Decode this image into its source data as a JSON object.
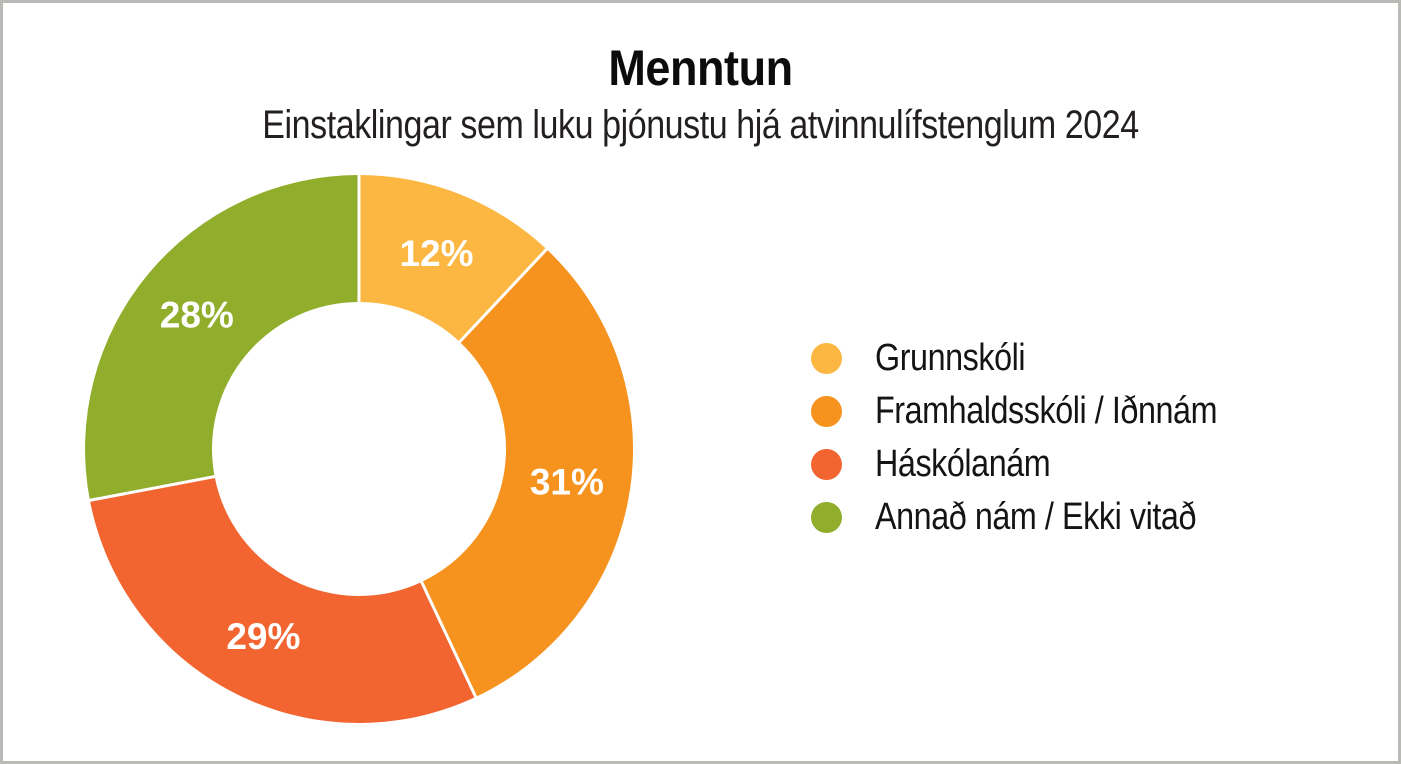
{
  "frame": {
    "background": "#ffffff",
    "border_color": "#b9b9b5"
  },
  "header": {
    "title": "Menntun",
    "subtitle": "Einstaklingar sem luku þjónustu hjá atvinnulífstenglum 2024"
  },
  "chart_data": {
    "type": "pie",
    "variant": "donut",
    "title": "Menntun",
    "subtitle": "Einstaklingar sem luku þjónustu hjá atvinnulífstenglum 2024",
    "unit": "%",
    "start_angle_deg": 0,
    "direction": "clockwise",
    "donut_hole_ratio": 0.536,
    "legend_position": "right",
    "data_label_color": "#ffffff",
    "segments": [
      {
        "label": "Grunnskóli",
        "value": 12,
        "data_label": "12%",
        "color": "#fbb742"
      },
      {
        "label": "Framhaldsskóli / Iðnnám",
        "value": 31,
        "data_label": "31%",
        "color": "#f6921e"
      },
      {
        "label": "Háskólanám",
        "value": 29,
        "data_label": "29%",
        "color": "#f26531"
      },
      {
        "label": "Annað nám / Ekki vitað",
        "value": 28,
        "data_label": "28%",
        "color": "#90ae2b"
      }
    ]
  }
}
